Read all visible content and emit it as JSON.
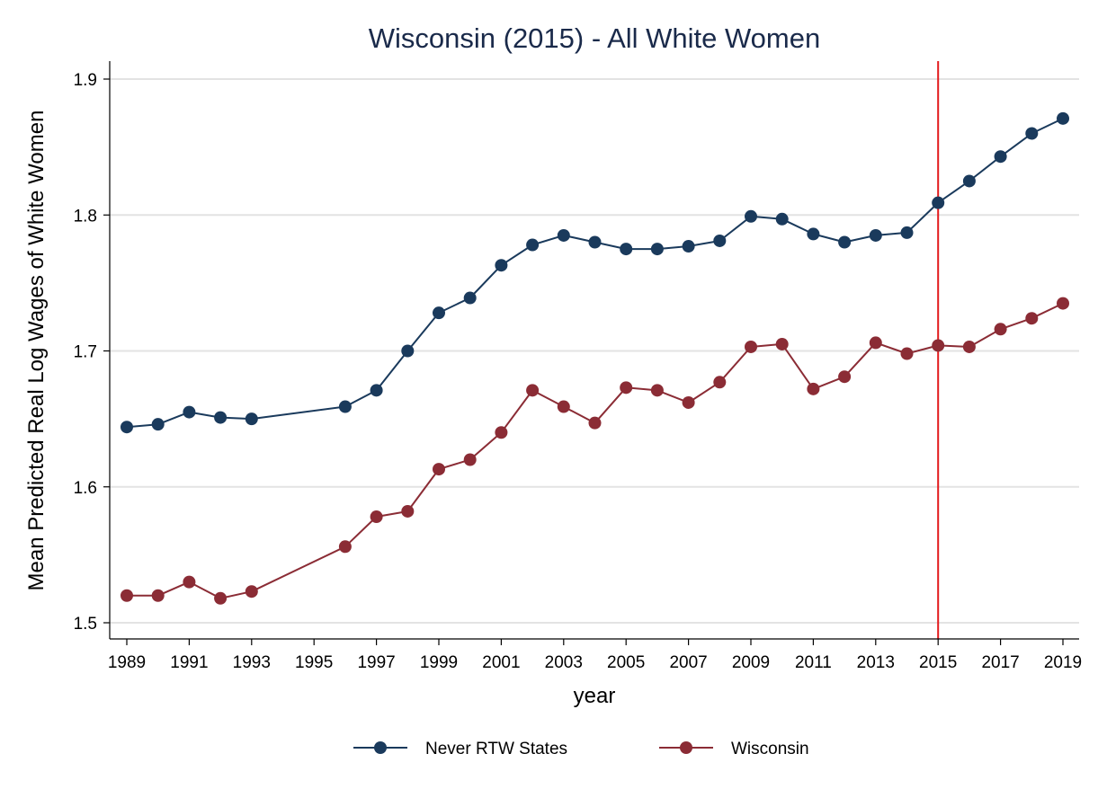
{
  "chart_data": {
    "type": "line",
    "title": "Wisconsin (2015) - All White Women",
    "xlabel": "year",
    "ylabel": "Mean Predicted Real Log Wages of White Women",
    "x_ticks": [
      "1989",
      "1991",
      "1993",
      "1995",
      "1997",
      "1999",
      "2001",
      "2003",
      "2005",
      "2007",
      "2009",
      "2011",
      "2013",
      "2015",
      "2017",
      "2019"
    ],
    "y_ticks": [
      "1.5",
      "1.6",
      "1.7",
      "1.8",
      "1.9"
    ],
    "xlim": [
      1988.7,
      1219.4
    ],
    "ylim": [
      1.49,
      1.913
    ],
    "grid": true,
    "legend_position": "bottom",
    "colors": {
      "never_rtw": "#1a3a5c",
      "wisconsin": "#8b2c35",
      "reference_line": "#e31a1c",
      "grid": "#e3e3e3"
    },
    "reference_line": {
      "x": 2015
    },
    "series": [
      {
        "name": "Never RTW States",
        "color": "#1a3a5c",
        "x": [
          1989,
          1990,
          1991,
          1992,
          1993,
          1996,
          1997,
          1998,
          1999,
          2000,
          2001,
          2002,
          2003,
          2004,
          2005,
          2006,
          2007,
          2008,
          2009,
          2010,
          2011,
          2012,
          2013,
          2014,
          2015,
          2016,
          2017,
          2018,
          2019
        ],
        "values": [
          1.644,
          1.646,
          1.655,
          1.651,
          1.65,
          1.659,
          1.671,
          1.7,
          1.728,
          1.739,
          1.763,
          1.778,
          1.785,
          1.78,
          1.775,
          1.775,
          1.777,
          1.781,
          1.799,
          1.797,
          1.786,
          1.78,
          1.785,
          1.787,
          1.809,
          1.825,
          1.843,
          1.86,
          1.871
        ]
      },
      {
        "name": "Wisconsin",
        "color": "#8b2c35",
        "x": [
          1989,
          1990,
          1991,
          1992,
          1993,
          1996,
          1997,
          1998,
          1999,
          2000,
          2001,
          2002,
          2003,
          2004,
          2005,
          2006,
          2007,
          2008,
          2009,
          2010,
          2011,
          2012,
          2013,
          2014,
          2015,
          2016,
          2017,
          2018,
          2019
        ],
        "values": [
          1.52,
          1.52,
          1.53,
          1.518,
          1.523,
          1.556,
          1.578,
          1.582,
          1.613,
          1.62,
          1.64,
          1.671,
          1.659,
          1.647,
          1.673,
          1.671,
          1.662,
          1.677,
          1.703,
          1.705,
          1.672,
          1.681,
          1.706,
          1.698,
          1.704,
          1.703,
          1.716,
          1.724,
          1.735
        ]
      }
    ]
  }
}
